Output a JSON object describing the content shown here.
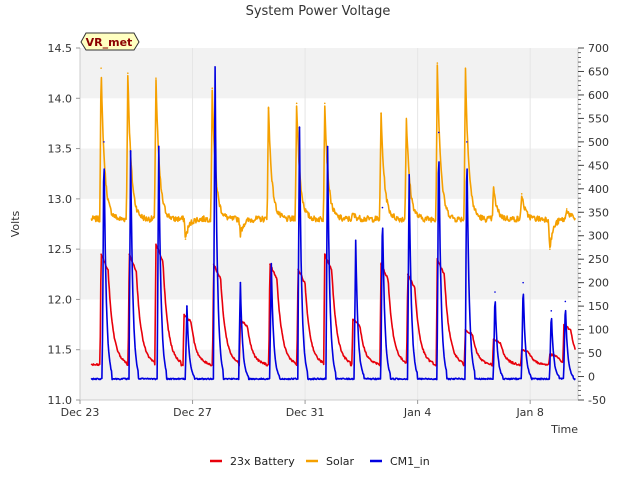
{
  "chart_data": {
    "type": "line",
    "title": "System Power Voltage",
    "xlabel": "Time",
    "ylabel": "Volts",
    "badge": "VR_met",
    "x_ticks": [
      {
        "label": "Dec 23",
        "day": 0
      },
      {
        "label": "Dec 27",
        "day": 4
      },
      {
        "label": "Dec 31",
        "day": 8
      },
      {
        "label": "Jan 4",
        "day": 12
      },
      {
        "label": "Jan 8",
        "day": 16
      }
    ],
    "xlim": [
      0,
      17.7
    ],
    "y_left": {
      "lim": [
        11.0,
        14.5
      ],
      "ticks": [
        "11.0",
        "11.5",
        "12.0",
        "12.5",
        "13.0",
        "13.5",
        "14.0",
        "14.5"
      ]
    },
    "y_right": {
      "lim": [
        -50,
        700
      ],
      "ticks": [
        "-50",
        "0",
        "50",
        "100",
        "150",
        "200",
        "250",
        "300",
        "350",
        "400",
        "450",
        "500",
        "550",
        "600",
        "650",
        "700"
      ]
    },
    "band_ranges": [
      [
        11.0,
        11.5
      ],
      [
        12.0,
        12.5
      ],
      [
        13.0,
        13.5
      ],
      [
        14.0,
        14.5
      ]
    ],
    "band_color": "#f2f2f2",
    "series": [
      {
        "name": "23x Battery",
        "axis": "left",
        "color": "#e8000b",
        "base": 11.35,
        "x_start": 0.4,
        "x_end": 17.6,
        "peaks": [
          {
            "day": 0.75,
            "value": 12.45
          },
          {
            "day": 1.75,
            "value": 12.45
          },
          {
            "day": 2.7,
            "value": 12.55
          },
          {
            "day": 3.7,
            "value": 11.85
          },
          {
            "day": 4.75,
            "value": 12.35
          },
          {
            "day": 5.7,
            "value": 11.8
          },
          {
            "day": 6.75,
            "value": 12.35
          },
          {
            "day": 7.75,
            "value": 12.3
          },
          {
            "day": 8.7,
            "value": 12.45
          },
          {
            "day": 9.7,
            "value": 11.8
          },
          {
            "day": 10.7,
            "value": 12.35
          },
          {
            "day": 11.65,
            "value": 12.25
          },
          {
            "day": 12.7,
            "value": 12.4
          },
          {
            "day": 13.7,
            "value": 11.7
          },
          {
            "day": 14.7,
            "value": 11.6
          },
          {
            "day": 15.7,
            "value": 11.5
          },
          {
            "day": 16.7,
            "value": 11.45
          },
          {
            "day": 17.2,
            "value": 11.75
          }
        ]
      },
      {
        "name": "Solar",
        "axis": "left",
        "color": "#f5a000",
        "base": 12.8,
        "x_start": 0.4,
        "x_end": 17.6,
        "peaks": [
          {
            "day": 0.75,
            "value": 14.3
          },
          {
            "day": 1.7,
            "value": 14.25
          },
          {
            "day": 2.7,
            "value": 14.2
          },
          {
            "day": 3.75,
            "value": 12.6
          },
          {
            "day": 4.7,
            "value": 14.1
          },
          {
            "day": 5.7,
            "value": 12.65
          },
          {
            "day": 6.7,
            "value": 13.9
          },
          {
            "day": 7.7,
            "value": 13.95
          },
          {
            "day": 8.7,
            "value": 13.95
          },
          {
            "day": 9.7,
            "value": 12.85
          },
          {
            "day": 10.7,
            "value": 13.85
          },
          {
            "day": 11.6,
            "value": 13.8
          },
          {
            "day": 12.7,
            "value": 14.35
          },
          {
            "day": 13.7,
            "value": 14.3
          },
          {
            "day": 14.7,
            "value": 13.1
          },
          {
            "day": 15.7,
            "value": 13.05
          },
          {
            "day": 16.7,
            "value": 12.5
          },
          {
            "day": 17.3,
            "value": 12.9
          }
        ]
      },
      {
        "name": "CM1_in",
        "axis": "right",
        "color": "#0000e0",
        "base": -5,
        "x_start": 0.4,
        "x_end": 17.6,
        "peaks": [
          {
            "day": 0.85,
            "value": 500
          },
          {
            "day": 1.8,
            "value": 480
          },
          {
            "day": 2.8,
            "value": 490
          },
          {
            "day": 3.8,
            "value": 150
          },
          {
            "day": 4.8,
            "value": 660
          },
          {
            "day": 5.7,
            "value": 200
          },
          {
            "day": 6.8,
            "value": 240
          },
          {
            "day": 7.8,
            "value": 530
          },
          {
            "day": 8.8,
            "value": 490
          },
          {
            "day": 9.8,
            "value": 290
          },
          {
            "day": 10.75,
            "value": 360
          },
          {
            "day": 11.7,
            "value": 430
          },
          {
            "day": 12.75,
            "value": 520
          },
          {
            "day": 13.75,
            "value": 500
          },
          {
            "day": 14.75,
            "value": 180
          },
          {
            "day": 15.75,
            "value": 200
          },
          {
            "day": 16.75,
            "value": 140
          },
          {
            "day": 17.25,
            "value": 160
          }
        ]
      }
    ]
  }
}
